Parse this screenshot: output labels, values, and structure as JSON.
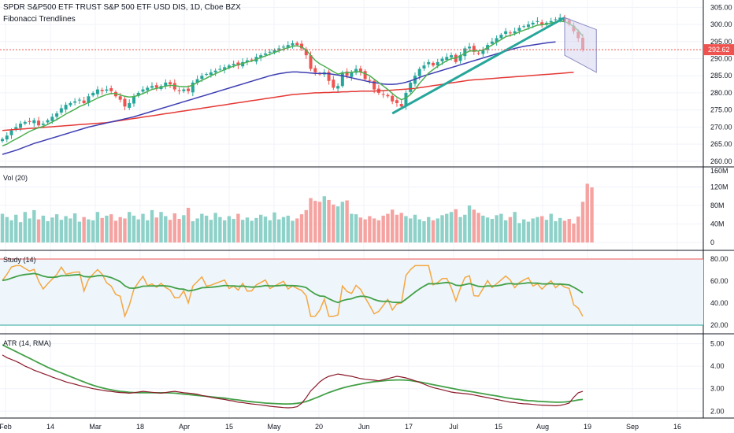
{
  "header": {
    "title": "SPDR S&P500 ETF TRUST S&P 500 ETF USD DIS, 1D, Cboe BZX",
    "study": "Fibonacci Trendlines"
  },
  "price_tag": "292.62",
  "colors": {
    "up": "#26a69a",
    "down": "#ef5350",
    "ma_short": "#4caf50",
    "ma_mid": "#3f3fb3",
    "ma_long": "#e53935",
    "trend": "#26a69a",
    "channel_fill": "#d8d8f0",
    "study_line": "#f5a742",
    "study_signal": "#43a047",
    "atr_line": "#8b1a2b",
    "atr_signal": "#43a047",
    "band_fill": "#eef6fb"
  },
  "chart_data": [
    {
      "type": "candlestick",
      "pane": "price",
      "title": "SPDR S&P500 ETF TRUST S&P 500 ETF USD DIS, 1D, Cboe BZX",
      "ylim": [
        259.5,
        306
      ],
      "y_ticks": [
        "305.00",
        "300.00",
        "295.00",
        "290.00",
        "285.00",
        "280.00",
        "275.00",
        "270.00",
        "265.00",
        "260.00"
      ],
      "x_ticks": [
        "Feb",
        "14",
        "Mar",
        "18",
        "Apr",
        "15",
        "May",
        "20",
        "Jun",
        "17",
        "Jul",
        "15",
        "Aug",
        "19",
        "Sep",
        "16"
      ],
      "last_price": 292.62,
      "close_series": [
        266.5,
        267.5,
        269,
        270,
        271,
        271.5,
        271.5,
        272,
        270.5,
        271,
        272,
        273,
        274,
        275.5,
        276.5,
        277,
        277.5,
        278,
        277,
        279,
        280,
        281,
        280.5,
        281,
        280.5,
        279,
        278,
        276,
        277,
        279,
        280,
        281,
        281.5,
        282,
        281.5,
        282,
        283,
        282.5,
        281,
        280.5,
        281,
        280.5,
        283,
        284,
        285,
        285.5,
        286,
        286.5,
        287,
        287.5,
        288,
        288.5,
        288,
        289,
        289.5,
        289.5,
        290.5,
        291,
        291.5,
        292,
        292.5,
        293,
        293.5,
        294,
        294.5,
        294,
        293,
        291,
        287,
        286,
        285.5,
        286,
        283.5,
        281.5,
        282,
        286,
        285,
        286,
        287,
        286,
        284,
        283.5,
        281,
        280,
        279.5,
        279,
        277.5,
        277,
        276,
        280,
        283,
        285,
        287,
        288,
        289,
        288,
        289,
        290,
        290.5,
        291,
        289,
        291,
        293,
        293.5,
        292,
        291.5,
        292.5,
        294,
        295,
        296,
        297,
        298,
        297.5,
        298,
        299,
        299.5,
        300,
        300.5,
        301,
        300,
        300.5,
        301,
        301.5,
        302,
        301,
        300,
        298,
        296,
        292.62
      ],
      "ma_short": [
        264.5,
        265,
        265.8,
        266.5,
        267.2,
        268,
        268.7,
        269.3,
        269.8,
        270.2,
        270.8,
        271.5,
        272.2,
        273,
        273.8,
        274.5,
        275.2,
        276,
        276.5,
        277.2,
        277.8,
        278.5,
        279,
        279.5,
        279.8,
        279.8,
        279.4,
        279,
        278.8,
        278.9,
        279.3,
        279.8,
        280.4,
        281,
        281.3,
        281.6,
        282,
        282.2,
        282.1,
        281.9,
        281.8,
        281.8,
        282.3,
        283,
        283.7,
        284.3,
        285,
        285.6,
        286.2,
        286.8,
        287.3,
        287.8,
        288.2,
        288.6,
        289,
        289.3,
        289.8,
        290.3,
        290.8,
        291.3,
        291.8,
        292.3,
        292.8,
        293.2,
        293.6,
        293.8,
        293.4,
        292.5,
        291,
        289.5,
        288.5,
        287.8,
        287,
        286.2,
        285.5,
        285.8,
        285.9,
        286,
        286.2,
        286.1,
        285.6,
        285,
        284,
        283,
        282,
        281,
        279.8,
        278.8,
        278,
        278.5,
        279.5,
        281,
        282.8,
        284.3,
        285.8,
        286.8,
        287.8,
        288.6,
        289.4,
        290,
        290.2,
        290.8,
        291.6,
        292.2,
        292.3,
        292.2,
        292.5,
        293.2,
        294,
        294.8,
        295.6,
        296.4,
        296.8,
        297.2,
        297.8,
        298.3,
        298.8,
        299.3,
        299.8,
        299.9,
        300.1,
        300.4,
        300.7,
        301,
        300.8,
        300.3,
        299.4,
        298.2,
        296.6
      ],
      "ma_mid": [
        262,
        262.4,
        262.8,
        263.2,
        263.7,
        264.2,
        264.7,
        265.2,
        265.6,
        266,
        266.4,
        266.8,
        267.2,
        267.6,
        268,
        268.4,
        268.8,
        269.2,
        269.6,
        270,
        270.3,
        270.6,
        270.9,
        271.2,
        271.5,
        271.8,
        272.1,
        272.4,
        272.7,
        273,
        273.4,
        273.8,
        274.2,
        274.6,
        275,
        275.4,
        275.8,
        276.2,
        276.6,
        277,
        277.4,
        277.8,
        278.2,
        278.6,
        279,
        279.4,
        279.8,
        280.2,
        280.6,
        281,
        281.4,
        281.8,
        282.2,
        282.6,
        283,
        283.4,
        283.8,
        284.2,
        284.6,
        285,
        285.3,
        285.6,
        285.8,
        286,
        286.1,
        286.1,
        286,
        285.9,
        285.8,
        285.7,
        285.7,
        285.7,
        285.6,
        285.4,
        285.2,
        285,
        284.7,
        284.4,
        284.1,
        283.8,
        283.5,
        283.2,
        283,
        282.8,
        282.6,
        282.5,
        282.5,
        282.6,
        282.8,
        283.1,
        283.5,
        284,
        284.5,
        285,
        285.4,
        285.8,
        286.2,
        286.6,
        287,
        287.4,
        287.8,
        288.2,
        288.6,
        289,
        289.4,
        289.8,
        290.2,
        290.6,
        291,
        291.4,
        291.8,
        292.2,
        292.6,
        293,
        293.3,
        293.6,
        293.8,
        294,
        294.2,
        294.4,
        294.6,
        294.8,
        294.9
      ],
      "ma_long": [
        269,
        269.1,
        269.2,
        269.3,
        269.4,
        269.5,
        269.6,
        269.7,
        269.8,
        269.9,
        270,
        270.1,
        270.2,
        270.3,
        270.4,
        270.5,
        270.6,
        270.7,
        270.8,
        270.9,
        271,
        271.1,
        271.2,
        271.3,
        271.5,
        271.7,
        271.9,
        272.1,
        272.3,
        272.5,
        272.7,
        272.9,
        273.1,
        273.3,
        273.5,
        273.7,
        273.9,
        274.1,
        274.3,
        274.5,
        274.7,
        274.9,
        275.1,
        275.3,
        275.5,
        275.7,
        275.9,
        276.1,
        276.3,
        276.5,
        276.7,
        276.9,
        277.1,
        277.3,
        277.5,
        277.7,
        277.9,
        278.1,
        278.3,
        278.5,
        278.7,
        278.9,
        279.1,
        279.3,
        279.5,
        279.6,
        279.7,
        279.8,
        279.9,
        280,
        280,
        280.1,
        280.1,
        280.2,
        280.2,
        280.3,
        280.3,
        280.4,
        280.4,
        280.5,
        280.5,
        280.5,
        280.5,
        280.6,
        280.6,
        280.7,
        280.8,
        280.9,
        281,
        281.1,
        281.2,
        281.3,
        281.5,
        281.7,
        281.9,
        282.1,
        282.3,
        282.5,
        282.7,
        282.9,
        283.1,
        283.3,
        283.5,
        283.7,
        283.8,
        283.9,
        284,
        284.1,
        284.2,
        284.3,
        284.4,
        284.5,
        284.6,
        284.7,
        284.8,
        284.9,
        285,
        285.1,
        285.2,
        285.3,
        285.4,
        285.5,
        285.6,
        285.7,
        285.8,
        285.9,
        286
      ]
    },
    {
      "type": "bar",
      "pane": "volume",
      "title": "Vol (20)",
      "ylim": [
        0,
        160
      ],
      "y_ticks": [
        "160M",
        "120M",
        "80M",
        "40M",
        "0"
      ],
      "values": [
        62,
        55,
        48,
        60,
        44,
        66,
        52,
        70,
        50,
        58,
        46,
        54,
        61,
        49,
        57,
        52,
        63,
        45,
        55,
        50,
        48,
        66,
        53,
        58,
        61,
        47,
        55,
        52,
        66,
        58,
        50,
        62,
        48,
        70,
        54,
        66,
        57,
        49,
        63,
        51,
        59,
        75,
        46,
        52,
        62,
        58,
        49,
        64,
        55,
        48,
        57,
        51,
        62,
        49,
        54,
        47,
        53,
        60,
        56,
        48,
        65,
        50,
        55,
        58,
        47,
        52,
        61,
        70,
        96,
        90,
        88,
        100,
        92,
        82,
        78,
        88,
        91,
        62,
        61,
        54,
        50,
        57,
        52,
        48,
        58,
        62,
        71,
        60,
        64,
        57,
        52,
        60,
        50,
        46,
        55,
        48,
        52,
        59,
        62,
        66,
        72,
        55,
        60,
        80,
        71,
        64,
        58,
        54,
        51,
        59,
        62,
        48,
        55,
        66,
        42,
        50,
        45,
        52,
        55,
        57,
        49,
        62,
        46,
        53,
        47,
        51,
        41,
        56,
        88,
        127,
        119
      ],
      "up_days": "close >= previous close"
    },
    {
      "type": "line",
      "pane": "study",
      "title": "Study (14)",
      "ylim": [
        15,
        85
      ],
      "y_ticks": [
        "80.00",
        "60.00",
        "40.00",
        "20.00"
      ],
      "upper_band": 80,
      "lower_band": 20
    },
    {
      "type": "line",
      "pane": "atr",
      "title": "ATR (14, RMA)",
      "ylim": [
        1.8,
        5.3
      ],
      "y_ticks": [
        "5.00",
        "4.00",
        "3.00",
        "2.00"
      ],
      "atr": [
        4.5,
        4.38,
        4.3,
        4.22,
        4.12,
        4,
        3.92,
        3.82,
        3.75,
        3.67,
        3.6,
        3.52,
        3.45,
        3.38,
        3.3,
        3.25,
        3.2,
        3.14,
        3.1,
        3.05,
        3,
        2.97,
        2.93,
        2.9,
        2.88,
        2.85,
        2.83,
        2.82,
        2.8,
        2.82,
        2.85,
        2.88,
        2.86,
        2.84,
        2.82,
        2.8,
        2.83,
        2.86,
        2.88,
        2.85,
        2.82,
        2.8,
        2.78,
        2.75,
        2.7,
        2.66,
        2.62,
        2.58,
        2.55,
        2.52,
        2.48,
        2.45,
        2.4,
        2.38,
        2.35,
        2.32,
        2.3,
        2.28,
        2.25,
        2.22,
        2.2,
        2.18,
        2.16,
        2.15,
        2.16,
        2.2,
        2.35,
        2.6,
        2.9,
        3.1,
        3.3,
        3.45,
        3.55,
        3.6,
        3.65,
        3.62,
        3.58,
        3.55,
        3.5,
        3.45,
        3.42,
        3.4,
        3.38,
        3.35,
        3.4,
        3.45,
        3.5,
        3.55,
        3.52,
        3.48,
        3.42,
        3.35,
        3.28,
        3.2,
        3.12,
        3.05,
        3,
        2.95,
        2.9,
        2.85,
        2.82,
        2.8,
        2.78,
        2.76,
        2.72,
        2.68,
        2.64,
        2.6,
        2.56,
        2.52,
        2.48,
        2.44,
        2.4,
        2.38,
        2.35,
        2.33,
        2.32,
        2.3,
        2.28,
        2.27,
        2.26,
        2.25,
        2.24,
        2.26,
        2.3,
        2.36,
        2.62,
        2.82,
        2.88
      ],
      "atr_signal": [
        4.95,
        4.85,
        4.75,
        4.65,
        4.55,
        4.45,
        4.35,
        4.25,
        4.15,
        4.05,
        3.95,
        3.86,
        3.78,
        3.7,
        3.62,
        3.54,
        3.46,
        3.38,
        3.3,
        3.22,
        3.15,
        3.09,
        3.04,
        2.99,
        2.95,
        2.91,
        2.88,
        2.86,
        2.84,
        2.83,
        2.82,
        2.82,
        2.82,
        2.82,
        2.82,
        2.82,
        2.82,
        2.81,
        2.8,
        2.78,
        2.76,
        2.74,
        2.72,
        2.7,
        2.68,
        2.66,
        2.64,
        2.62,
        2.6,
        2.58,
        2.55,
        2.52,
        2.5,
        2.47,
        2.44,
        2.42,
        2.4,
        2.38,
        2.36,
        2.35,
        2.34,
        2.33,
        2.32,
        2.32,
        2.33,
        2.35,
        2.38,
        2.43,
        2.5,
        2.58,
        2.66,
        2.75,
        2.83,
        2.9,
        2.97,
        3.03,
        3.08,
        3.13,
        3.17,
        3.21,
        3.25,
        3.28,
        3.31,
        3.33,
        3.35,
        3.37,
        3.38,
        3.39,
        3.39,
        3.38,
        3.36,
        3.33,
        3.3,
        3.26,
        3.22,
        3.18,
        3.14,
        3.1,
        3.06,
        3.02,
        2.98,
        2.94,
        2.91,
        2.88,
        2.85,
        2.81,
        2.78,
        2.74,
        2.71,
        2.68,
        2.64,
        2.6,
        2.57,
        2.54,
        2.52,
        2.49,
        2.47,
        2.46,
        2.44,
        2.43,
        2.42,
        2.41,
        2.4,
        2.4,
        2.41,
        2.43,
        2.46,
        2.5,
        2.52
      ]
    }
  ]
}
